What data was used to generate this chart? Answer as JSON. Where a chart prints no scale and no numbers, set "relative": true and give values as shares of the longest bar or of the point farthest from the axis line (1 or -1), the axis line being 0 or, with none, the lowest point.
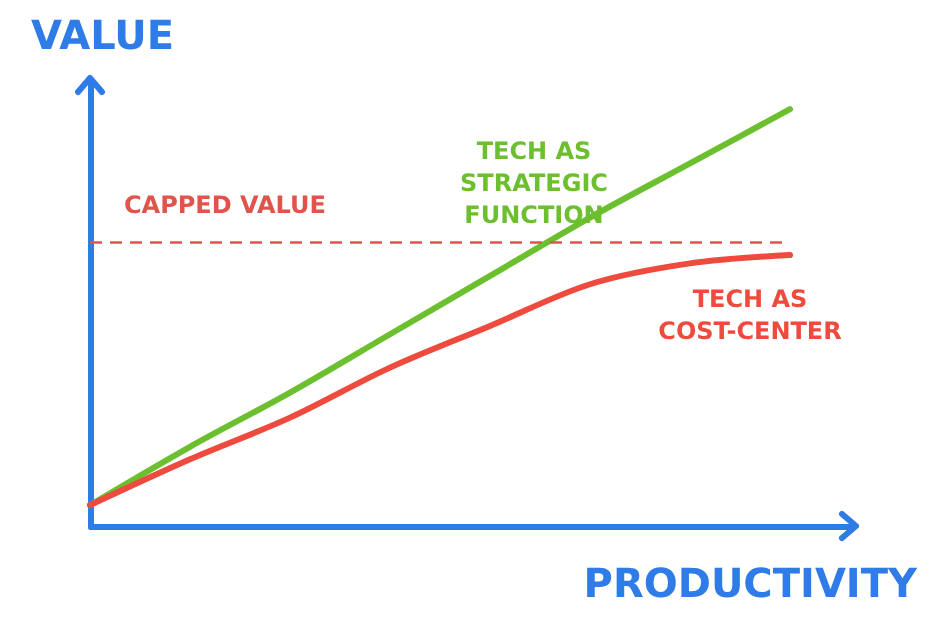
{
  "chart_data": {
    "type": "line",
    "relative": true,
    "xlabel": "PRODUCTIVITY",
    "ylabel": "VALUE",
    "categories": [
      null,
      null,
      null,
      null,
      null,
      null,
      null,
      null
    ],
    "series": [
      {
        "name": "TECH AS\nSTRATEGIC\nFUNCTION",
        "color": "#6cbf2e",
        "values": [
          0.05,
          0.19,
          0.32,
          0.46,
          0.6,
          0.74,
          0.87,
          1
        ]
      },
      {
        "name": "TECH AS\nCOST-CENTER",
        "color": "#ee4b3e",
        "values": [
          0.05,
          0.16,
          0.26,
          0.38,
          0.48,
          0.58,
          0.63,
          0.65
        ]
      }
    ],
    "ref_lines": [
      {
        "axis": "y",
        "value": 0.68,
        "label": "CAPPED VALUE",
        "color": "#e0544c",
        "line_style": "dashed"
      }
    ]
  }
}
